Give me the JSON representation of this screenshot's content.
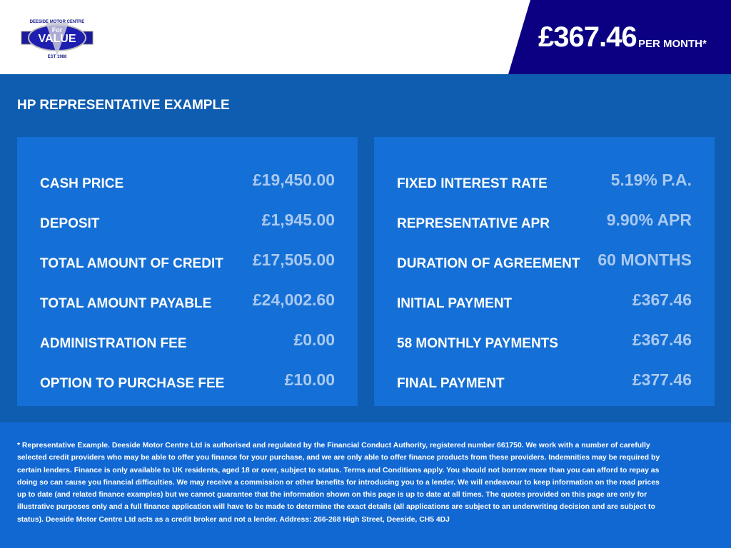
{
  "logo": {
    "top_text": "DEESIDE MOTOR CENTRE",
    "for": "For",
    "value": "VALUE",
    "est": "EST 1988"
  },
  "header": {
    "price": "£367.46",
    "per_month": "PER MONTH*"
  },
  "title": "HP REPRESENTATIVE EXAMPLE",
  "left_panel": [
    {
      "label": "CASH PRICE",
      "value": "£19,450.00"
    },
    {
      "label": "DEPOSIT",
      "value": "£1,945.00"
    },
    {
      "label": "TOTAL AMOUNT OF CREDIT",
      "value": "£17,505.00"
    },
    {
      "label": "TOTAL AMOUNT PAYABLE",
      "value": "£24,002.60"
    },
    {
      "label": "ADMINISTRATION FEE",
      "value": "£0.00"
    },
    {
      "label": "OPTION TO PURCHASE FEE",
      "value": "£10.00"
    }
  ],
  "right_panel": [
    {
      "label": "FIXED INTEREST RATE",
      "value": "5.19% P.A."
    },
    {
      "label": "REPRESENTATIVE APR",
      "value": "9.90% APR"
    },
    {
      "label": "DURATION OF AGREEMENT",
      "value": "60 MONTHS"
    },
    {
      "label": "INITIAL PAYMENT",
      "value": "£367.46"
    },
    {
      "label": "58 MONTHLY PAYMENTS",
      "value": "£367.46"
    },
    {
      "label": "FINAL PAYMENT",
      "value": "£377.46"
    }
  ],
  "disclaimer": "* Representative Example. Deeside Motor Centre Ltd is authorised and regulated by the Financial Conduct Authority, registered number 661750. We work with a number of carefully selected credit providers who may be able to offer you finance for your purchase, and we are only able to offer finance products from these providers. Indemnities may be required by certain lenders. Finance is only available to UK residents, aged 18 or over, subject to status. Terms and Conditions apply. You should not borrow more than you can afford to repay as doing so can cause you financial difficulties. We may receive a commission or other benefits for introducing you to a lender. We will endeavour to keep information on the road prices up to date (and related finance examples) but we cannot guarantee that the information shown on this page is up to date at all times. The quotes provided on this page are only for illustrative purposes only and a full finance application will have to be made to determine the exact details (all applications are subject to an underwriting decision and are subject to status). Deeside Motor Centre Ltd acts as a credit broker and not a lender. Address: 266-268 High Street, Deeside, CH5 4DJ",
  "colors": {
    "navy": "#0c0082",
    "main": "#0f5db0",
    "panel": "#146fd6",
    "value": "#a9c9f0"
  }
}
